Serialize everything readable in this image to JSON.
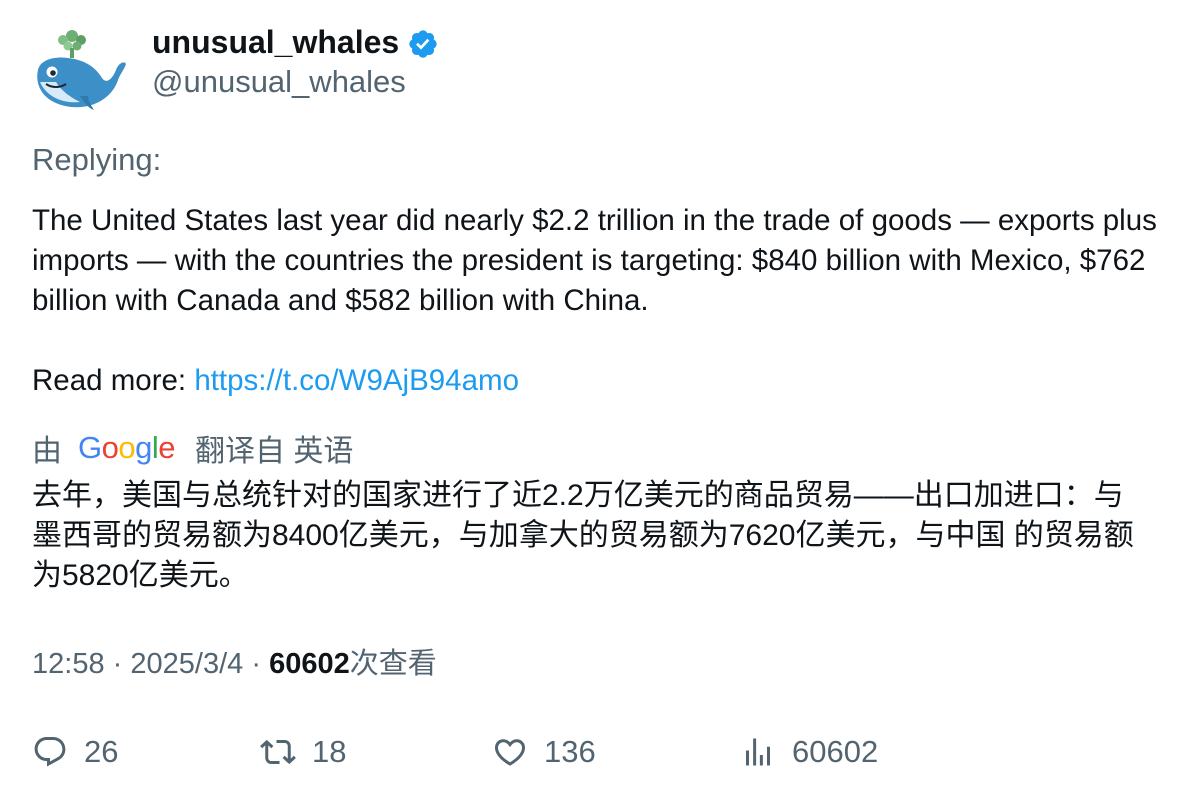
{
  "author": {
    "display_name": "unusual_whales",
    "handle": "@unusual_whales",
    "verified": true,
    "avatar_icon": "whale-logo-icon"
  },
  "replying_label": "Replying:",
  "tweet": {
    "text": "The United States last year did nearly $2.2 trillion in the trade of goods — exports plus imports — with the countries the president is targeting: $840 billion with Mexico, $762 billion with Canada and $582 billion with China.",
    "read_more_label": "Read more: ",
    "link": "https://t.co/W9AjB94amo"
  },
  "translation": {
    "by_label": "由",
    "provider": "Google",
    "translated_from_label": "翻译自 英语",
    "text": "去年，美国与总统针对的国家进行了近2.2万亿美元的商品贸易——出口加进口：与墨西哥的贸易额为8400亿美元，与加拿大的贸易额为7620亿美元，与中国 的贸易额为5820亿美元。"
  },
  "meta": {
    "time": "12:58",
    "separator": "·",
    "date": "2025/3/4",
    "views_count": "60602",
    "views_label": "次查看"
  },
  "actions": {
    "replies": "26",
    "retweets": "18",
    "likes": "136",
    "views": "60602"
  },
  "colors": {
    "text_primary": "#0f1419",
    "text_secondary": "#536471",
    "link": "#1d9bf0",
    "verified": "#1d9bf0"
  }
}
